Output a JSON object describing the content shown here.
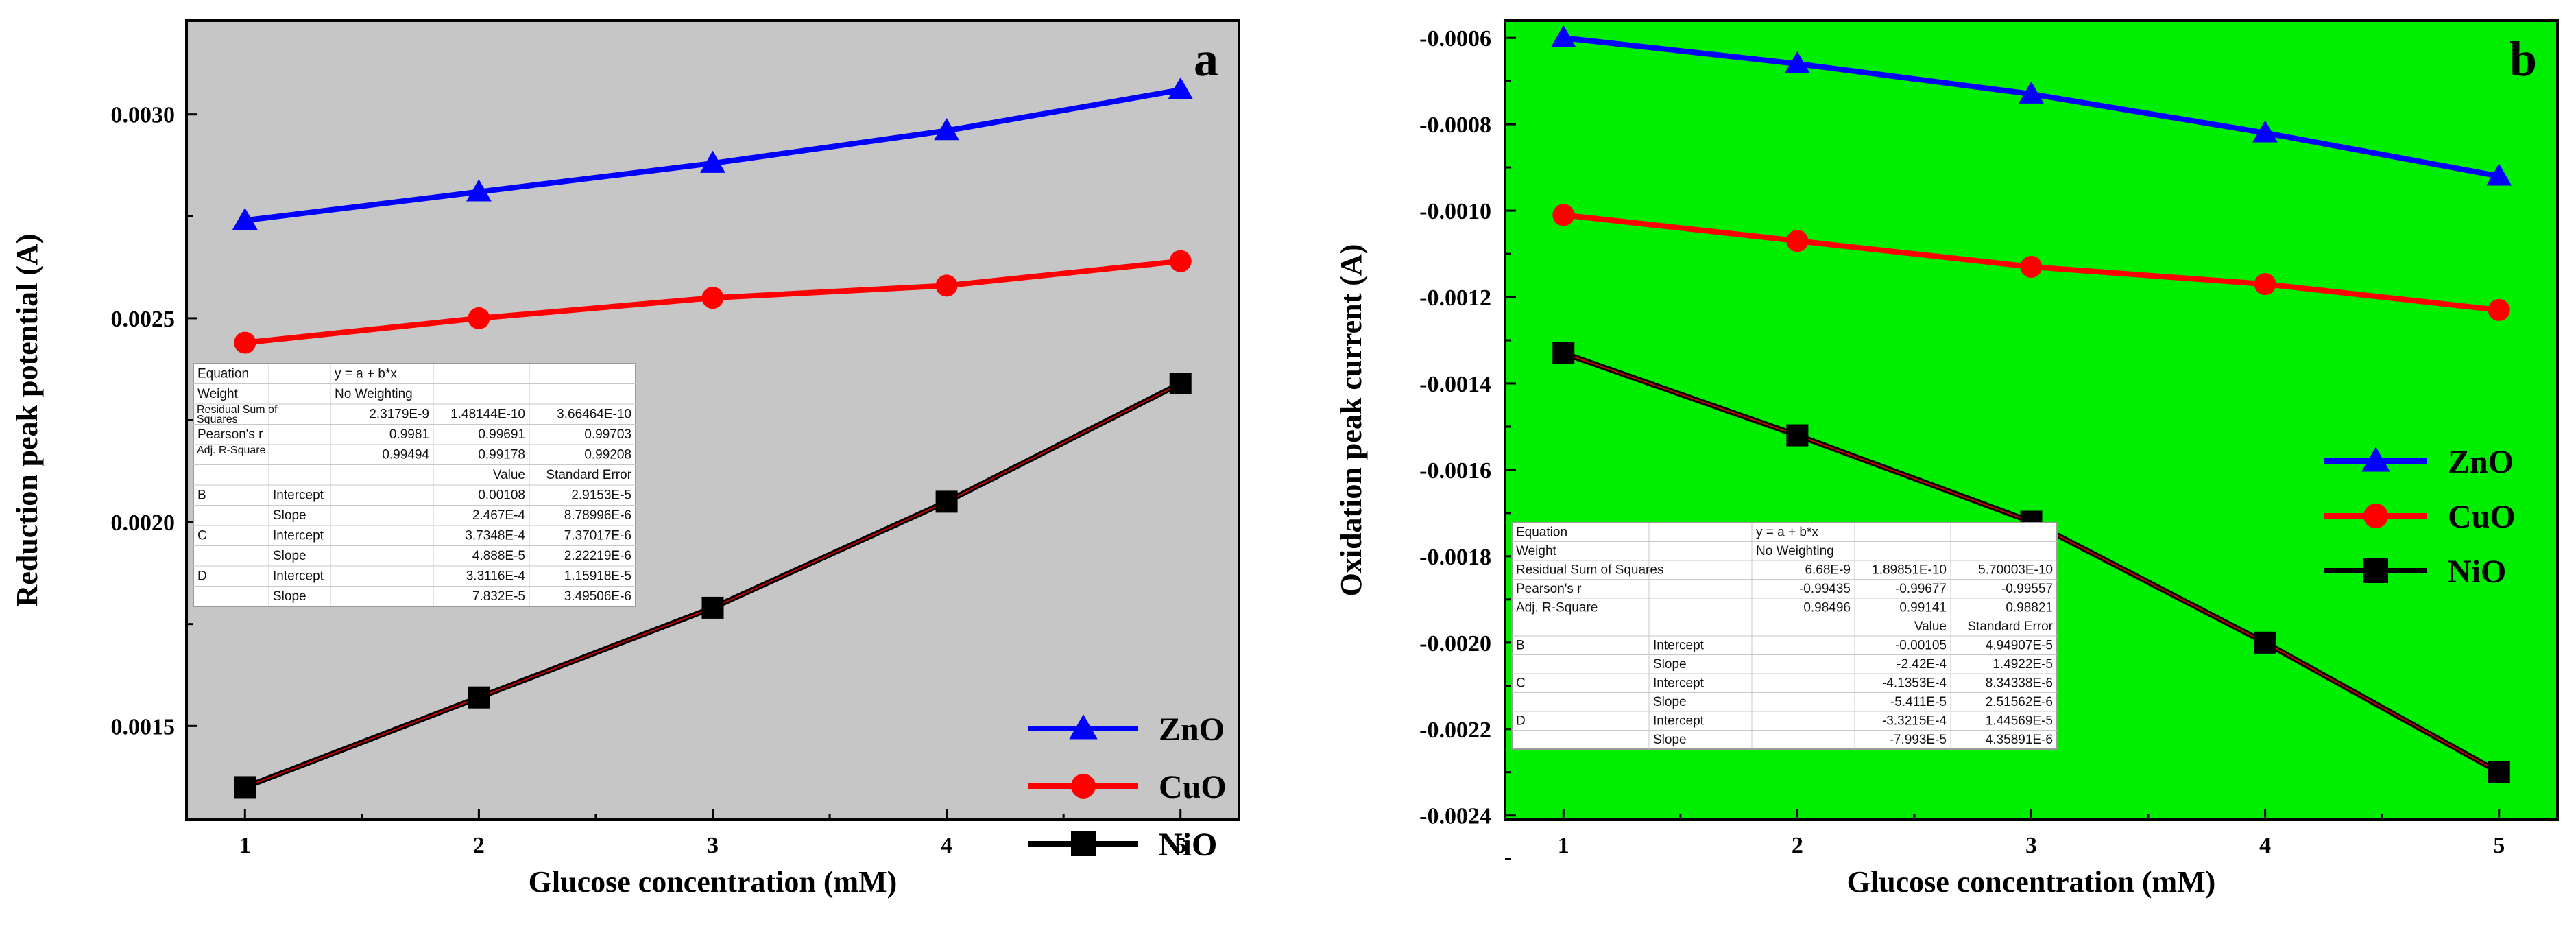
{
  "chart_data": [
    {
      "type": "line",
      "panel_label": "a",
      "xlabel": "Glucose concentration (mM)",
      "ylabel": "Reduction peak potential (A)",
      "xlim": [
        0.75,
        5.25
      ],
      "ylim": [
        0.00127,
        0.00323
      ],
      "x": [
        1,
        2,
        3,
        4,
        5
      ],
      "xticks": [
        "1",
        "2",
        "3",
        "4",
        "5"
      ],
      "yticks": [
        {
          "value": 0.0015,
          "label": "0.0015"
        },
        {
          "value": 0.002,
          "label": "0.0020"
        },
        {
          "value": 0.0025,
          "label": "0.0025"
        },
        {
          "value": 0.003,
          "label": "0.0030"
        }
      ],
      "background": "#c6c6c6",
      "legend_position": "bottom-right",
      "series": [
        {
          "name": "ZnO",
          "marker": "triangle",
          "color": "#0000ff",
          "values": [
            0.00274,
            0.00281,
            0.00288,
            0.00296,
            0.00306
          ]
        },
        {
          "name": "CuO",
          "marker": "circle",
          "color": "#ff0000",
          "values": [
            0.00244,
            0.0025,
            0.00255,
            0.00258,
            0.00264
          ]
        },
        {
          "name": "NiO",
          "marker": "square",
          "color": "#000000",
          "values": [
            0.00135,
            0.00157,
            0.00179,
            0.00205,
            0.00234
          ]
        }
      ],
      "stats_table": {
        "rows": [
          [
            "Equation",
            "",
            "y = a + b*x",
            "",
            ""
          ],
          [
            "Weight",
            "",
            "No Weighting",
            "",
            ""
          ],
          [
            "Residual Sum of Squares",
            "",
            "2.3179E-9",
            "1.48144E-10",
            "3.66464E-10"
          ],
          [
            "Pearson's r",
            "",
            "0.9981",
            "0.99691",
            "0.99703"
          ],
          [
            "Adj. R-Square",
            "",
            "0.99494",
            "0.99178",
            "0.99208"
          ],
          [
            "",
            "",
            "",
            "Value",
            "Standard Error"
          ],
          [
            "B",
            "Intercept",
            "",
            "0.00108",
            "2.9153E-5"
          ],
          [
            "",
            "Slope",
            "",
            "2.467E-4",
            "8.78996E-6"
          ],
          [
            "C",
            "Intercept",
            "",
            "3.7348E-4",
            "7.37017E-6"
          ],
          [
            "",
            "Slope",
            "",
            "4.888E-5",
            "2.22219E-6"
          ],
          [
            "D",
            "Intercept",
            "",
            "3.3116E-4",
            "1.15918E-5"
          ],
          [
            "",
            "Slope",
            "",
            "7.832E-5",
            "3.49506E-6"
          ]
        ]
      }
    },
    {
      "type": "line",
      "panel_label": "b",
      "xlabel": "Glucose concentration (mM)",
      "ylabel": "Oxidation peak current (A)",
      "xlim": [
        0.75,
        5.25
      ],
      "ylim": [
        -0.00241,
        -0.00056
      ],
      "x": [
        1,
        2,
        3,
        4,
        5
      ],
      "xticks": [
        "1",
        "2",
        "3",
        "4",
        "5"
      ],
      "yticks": [
        {
          "value": -0.0006,
          "label": "-0.0006"
        },
        {
          "value": -0.0008,
          "label": "-0.0008"
        },
        {
          "value": -0.001,
          "label": "-0.0010"
        },
        {
          "value": -0.0012,
          "label": "-0.0012"
        },
        {
          "value": -0.0014,
          "label": "-0.0014"
        },
        {
          "value": -0.0016,
          "label": "-0.0016"
        },
        {
          "value": -0.0018,
          "label": "-0.0018"
        },
        {
          "value": -0.002,
          "label": "-0.0020"
        },
        {
          "value": -0.0022,
          "label": "-0.0022"
        },
        {
          "value": -0.0024,
          "label": "-0.0024"
        }
      ],
      "background": "#00ee00",
      "legend_position": "right",
      "series": [
        {
          "name": "ZnO",
          "marker": "triangle",
          "color": "#0000ff",
          "values": [
            -0.0006,
            -0.00066,
            -0.00073,
            -0.00082,
            -0.00092
          ]
        },
        {
          "name": "CuO",
          "marker": "circle",
          "color": "#ff0000",
          "values": [
            -0.00101,
            -0.00107,
            -0.00113,
            -0.00117,
            -0.00123
          ]
        },
        {
          "name": "NiO",
          "marker": "square",
          "color": "#000000",
          "values": [
            -0.00133,
            -0.00152,
            -0.00172,
            -0.002,
            -0.0023
          ]
        }
      ],
      "stats_table": {
        "rows": [
          [
            "Equation",
            "",
            "y = a + b*x",
            "",
            ""
          ],
          [
            "Weight",
            "",
            "No Weighting",
            "",
            ""
          ],
          [
            "Residual Sum of Squares",
            "",
            "6.68E-9",
            "1.89851E-10",
            "5.70003E-10"
          ],
          [
            "Pearson's r",
            "",
            "-0.99435",
            "-0.99677",
            "-0.99557"
          ],
          [
            "Adj. R-Square",
            "",
            "0.98496",
            "0.99141",
            "0.98821"
          ],
          [
            "",
            "",
            "",
            "Value",
            "Standard Error"
          ],
          [
            "B",
            "Intercept",
            "",
            "-0.00105",
            "4.94907E-5"
          ],
          [
            "",
            "Slope",
            "",
            "-2.42E-4",
            "1.4922E-5"
          ],
          [
            "C",
            "Intercept",
            "",
            "-4.1353E-4",
            "8.34338E-6"
          ],
          [
            "",
            "Slope",
            "",
            "-5.411E-5",
            "2.51562E-6"
          ],
          [
            "D",
            "Intercept",
            "",
            "-3.3215E-4",
            "1.44569E-5"
          ],
          [
            "",
            "Slope",
            "",
            "-7.993E-5",
            "4.35891E-6"
          ]
        ]
      }
    }
  ]
}
